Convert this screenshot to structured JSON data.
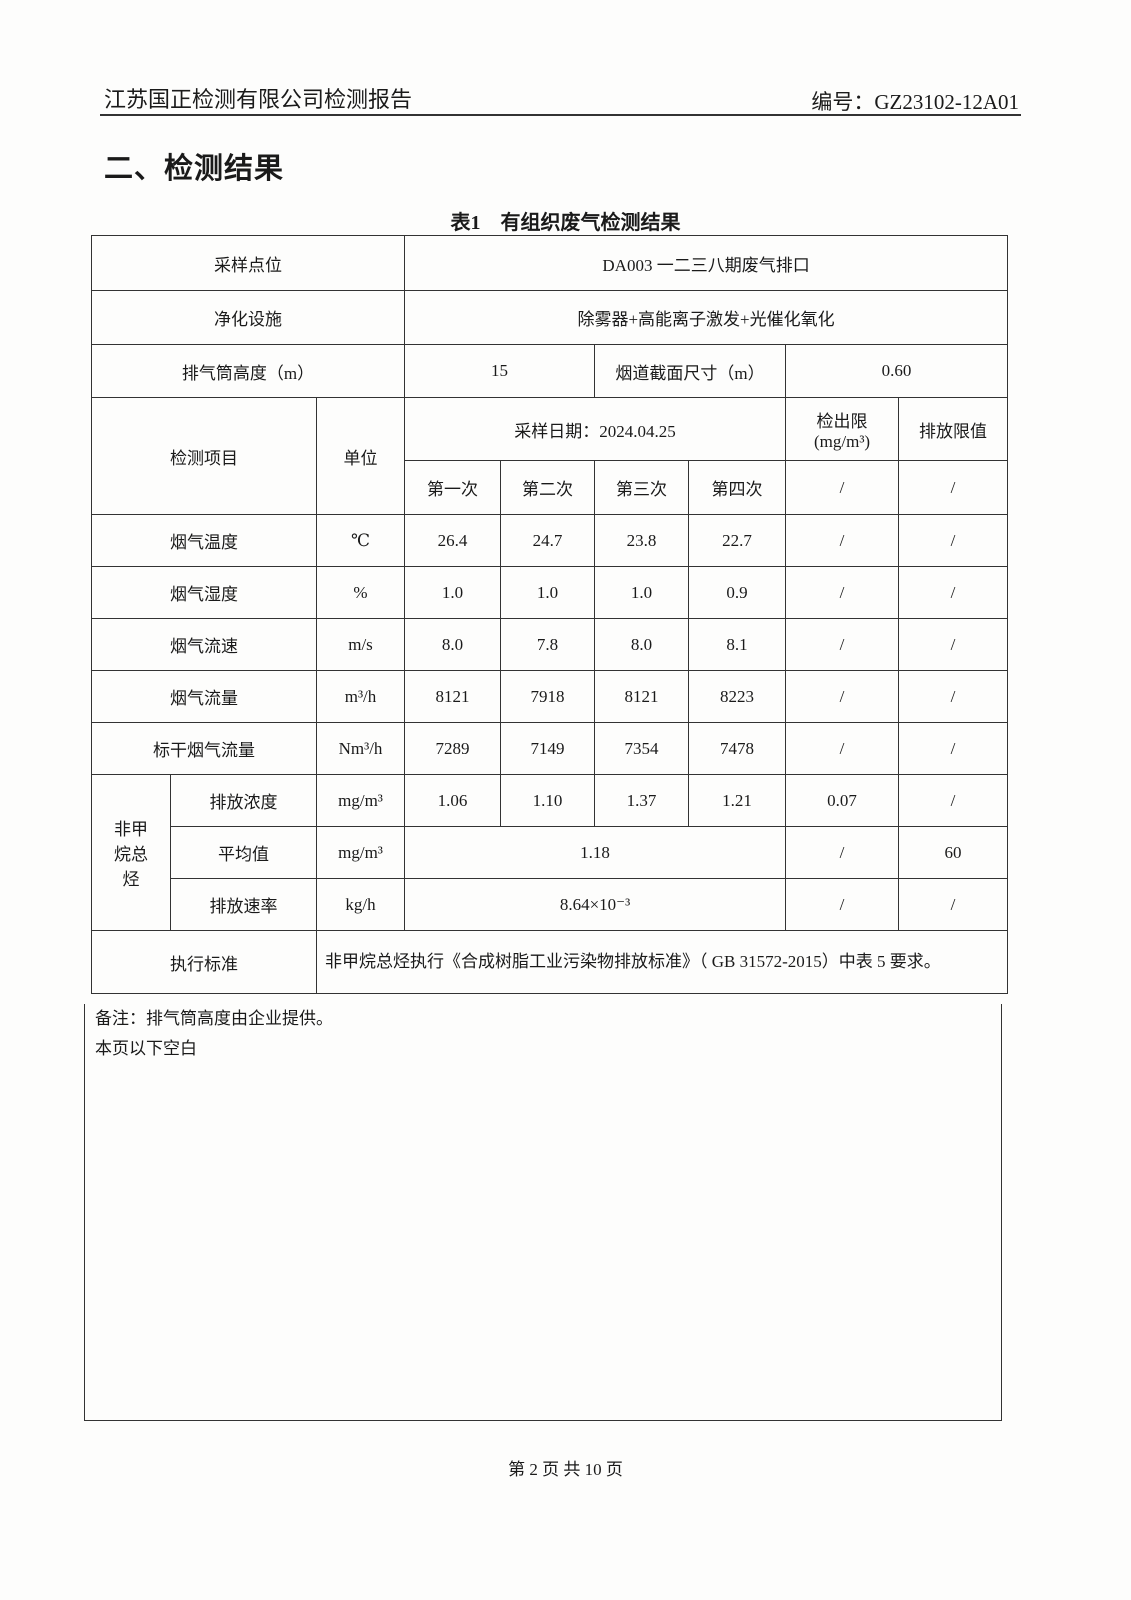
{
  "header": {
    "company": "江苏国正检测有限公司检测报告",
    "report_no": "编号：GZ23102-12A01"
  },
  "section_title": "二、检测结果",
  "table_caption": "表1　有组织废气检测结果",
  "table": {
    "sampling_point_label": "采样点位",
    "sampling_point": "DA003 一二三八期废气排口",
    "purification_label": "净化设施",
    "purification": "除雾器+高能离子激发+光催化氧化",
    "stack_height_label": "排气筒高度（m）",
    "stack_height": "15",
    "flue_size_label": "烟道截面尺寸（m）",
    "flue_size": "0.60",
    "item_label": "检测项目",
    "unit_label": "单位",
    "date_label": "采样日期：2024.04.25",
    "detection_limit_label": "检出限(mg/m³)",
    "limit_label": "排放限值",
    "runs": [
      "第一次",
      "第二次",
      "第三次",
      "第四次"
    ],
    "header_dl": "/",
    "header_lim": "/",
    "rows": [
      {
        "item": "烟气温度",
        "unit": "℃",
        "v": [
          "26.4",
          "24.7",
          "23.8",
          "22.7"
        ],
        "dl": "/",
        "lim": "/"
      },
      {
        "item": "烟气湿度",
        "unit": "%",
        "v": [
          "1.0",
          "1.0",
          "1.0",
          "0.9"
        ],
        "dl": "/",
        "lim": "/"
      },
      {
        "item": "烟气流速",
        "unit": "m/s",
        "v": [
          "8.0",
          "7.8",
          "8.0",
          "8.1"
        ],
        "dl": "/",
        "lim": "/"
      },
      {
        "item": "烟气流量",
        "unit": "m³/h",
        "v": [
          "8121",
          "7918",
          "8121",
          "8223"
        ],
        "dl": "/",
        "lim": "/"
      },
      {
        "item": "标干烟气流量",
        "unit": "Nm³/h",
        "v": [
          "7289",
          "7149",
          "7354",
          "7478"
        ],
        "dl": "/",
        "lim": "/"
      }
    ],
    "nmhc": {
      "group": "非甲烷总烃",
      "conc": {
        "item": "排放浓度",
        "unit": "mg/m³",
        "v": [
          "1.06",
          "1.10",
          "1.37",
          "1.21"
        ],
        "dl": "0.07",
        "lim": "/"
      },
      "avg": {
        "item": "平均值",
        "unit": "mg/m³",
        "value": "1.18",
        "dl": "/",
        "lim": "60"
      },
      "rate": {
        "item": "排放速率",
        "unit": "kg/h",
        "value": "8.64×10⁻³",
        "dl": "/",
        "lim": "/"
      }
    },
    "standard_label": "执行标准",
    "standard": "非甲烷总烃执行《合成树脂工业污染物排放标准》（ GB 31572-2015）中表 5 要求。"
  },
  "remarks": [
    "备注：排气筒高度由企业提供。",
    "本页以下空白"
  ],
  "footer": "第 2 页 共 10 页"
}
